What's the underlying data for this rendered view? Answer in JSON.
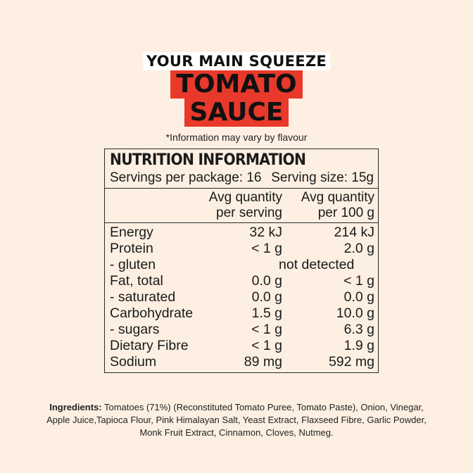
{
  "brand": {
    "tagline": "YOUR MAIN SQUEEZE"
  },
  "product": {
    "line1": "TOMATO",
    "line2": "SAUCE"
  },
  "disclaimer": "*Information may vary by flavour",
  "panel": {
    "title": "NUTRITION INFORMATION",
    "servings_per_package": "Servings per package: 16",
    "serving_size": "Serving size: 15g",
    "col1_header_line1": "Avg quantity",
    "col1_header_line2": "per serving",
    "col2_header_line1": "Avg quantity",
    "col2_header_line2": "per 100 g",
    "rows": [
      {
        "name": "Energy",
        "per_serving": "32 kJ",
        "per_100g": "214 kJ"
      },
      {
        "name": "Protein",
        "per_serving": "< 1 g",
        "per_100g": "2.0 g"
      },
      {
        "name": "- gluten",
        "combined": "not detected"
      },
      {
        "name": "Fat, total",
        "per_serving": "0.0 g",
        "per_100g": "< 1 g"
      },
      {
        "name": "- saturated",
        "per_serving": "0.0 g",
        "per_100g": "0.0 g"
      },
      {
        "name": "Carbohydrate",
        "per_serving": "1.5 g",
        "per_100g": "10.0 g"
      },
      {
        "name": "- sugars",
        "per_serving": "< 1 g",
        "per_100g": "6.3 g"
      },
      {
        "name": "Dietary Fibre",
        "per_serving": "< 1 g",
        "per_100g": "1.9 g"
      },
      {
        "name": "Sodium",
        "per_serving": "89 mg",
        "per_100g": "592 mg"
      }
    ]
  },
  "ingredients": {
    "label": "Ingredients:",
    "text": " Tomatoes (71%) (Reconstituted Tomato Puree, Tomato Paste), Onion, Vinegar, Apple Juice,Tapioca Flour, Pink Himalayan Salt, Yeast Extract, Flaxseed Fibre, Garlic Powder, Monk Fruit Extract, Cinnamon, Cloves, Nutmeg."
  },
  "colors": {
    "background": "#fdf0e2",
    "accent": "#e8392b",
    "text": "#1a1a1a"
  }
}
